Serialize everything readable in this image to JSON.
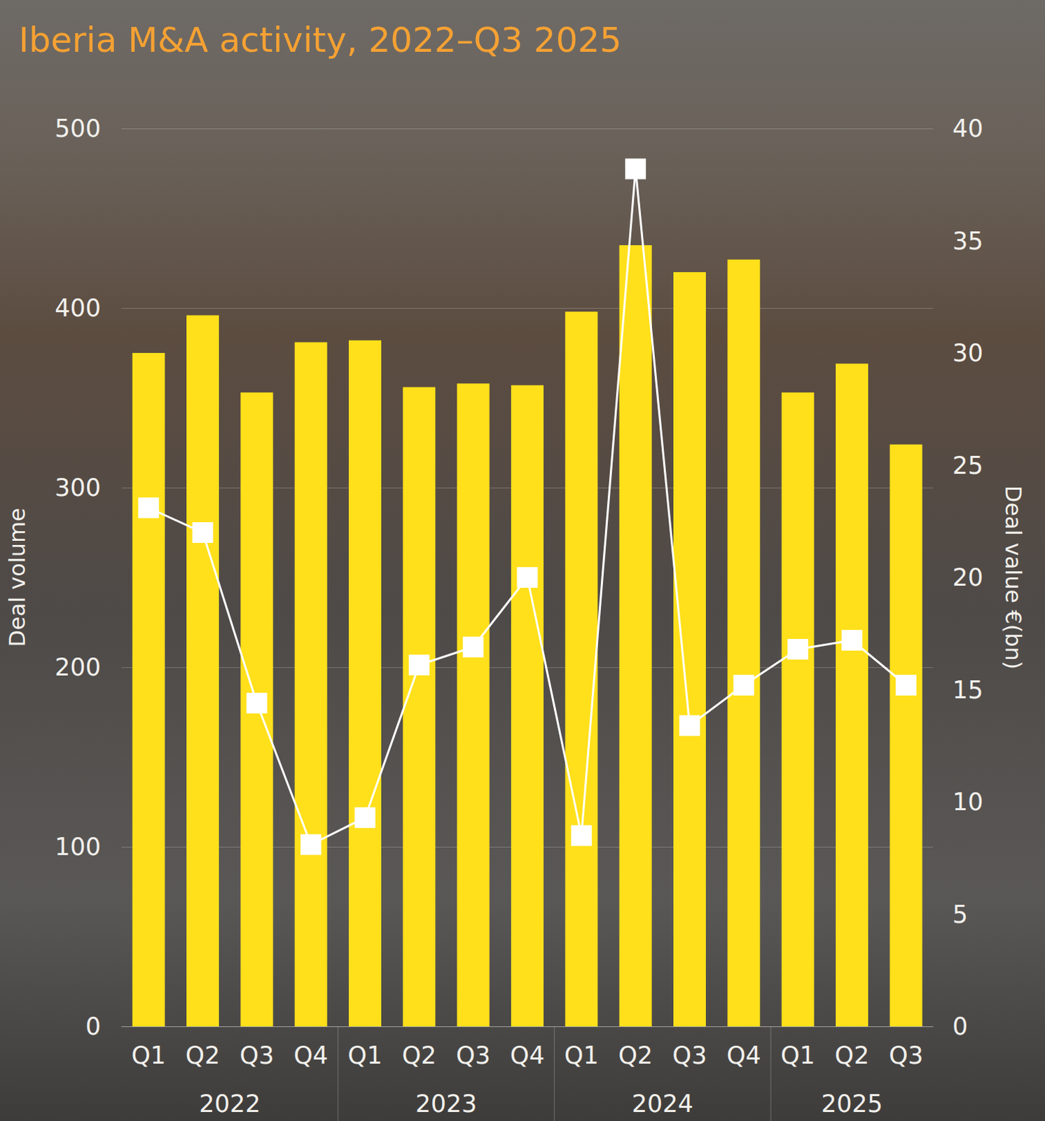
{
  "chart_data": {
    "type": "bar",
    "title": "Iberia M&A activity, 2022–Q3 2025",
    "y_label": "Deal volume",
    "y2_label": "Deal value €(bn)",
    "categories": [
      "Q1",
      "Q2",
      "Q3",
      "Q4",
      "Q1",
      "Q2",
      "Q3",
      "Q4",
      "Q1",
      "Q2",
      "Q3",
      "Q4",
      "Q1",
      "Q2",
      "Q3"
    ],
    "category_groups": [
      "2022",
      "2022",
      "2022",
      "2022",
      "2023",
      "2023",
      "2023",
      "2023",
      "2024",
      "2024",
      "2024",
      "2024",
      "2025",
      "2025",
      "2025"
    ],
    "series": [
      {
        "type": "bar",
        "color": "#ffe01a",
        "values": [
          375,
          396,
          353,
          381,
          382,
          356,
          358,
          357,
          398,
          435,
          420,
          427,
          353,
          369,
          324
        ]
      },
      {
        "type": "line",
        "axis": "y2",
        "color": "#ffffff",
        "marker": "square",
        "values": [
          23.1,
          22.0,
          14.4,
          8.1,
          9.3,
          16.1,
          16.9,
          20.0,
          8.5,
          38.2,
          13.4,
          15.2,
          16.8,
          17.2,
          15.2
        ]
      }
    ],
    "ylim": [
      0,
      500
    ],
    "yticks": [
      0,
      100,
      200,
      300,
      400,
      500
    ],
    "y2lim": [
      0,
      40
    ],
    "y2ticks": [
      0,
      5,
      10,
      15,
      20,
      25,
      30,
      35,
      40
    ],
    "grid": true
  }
}
